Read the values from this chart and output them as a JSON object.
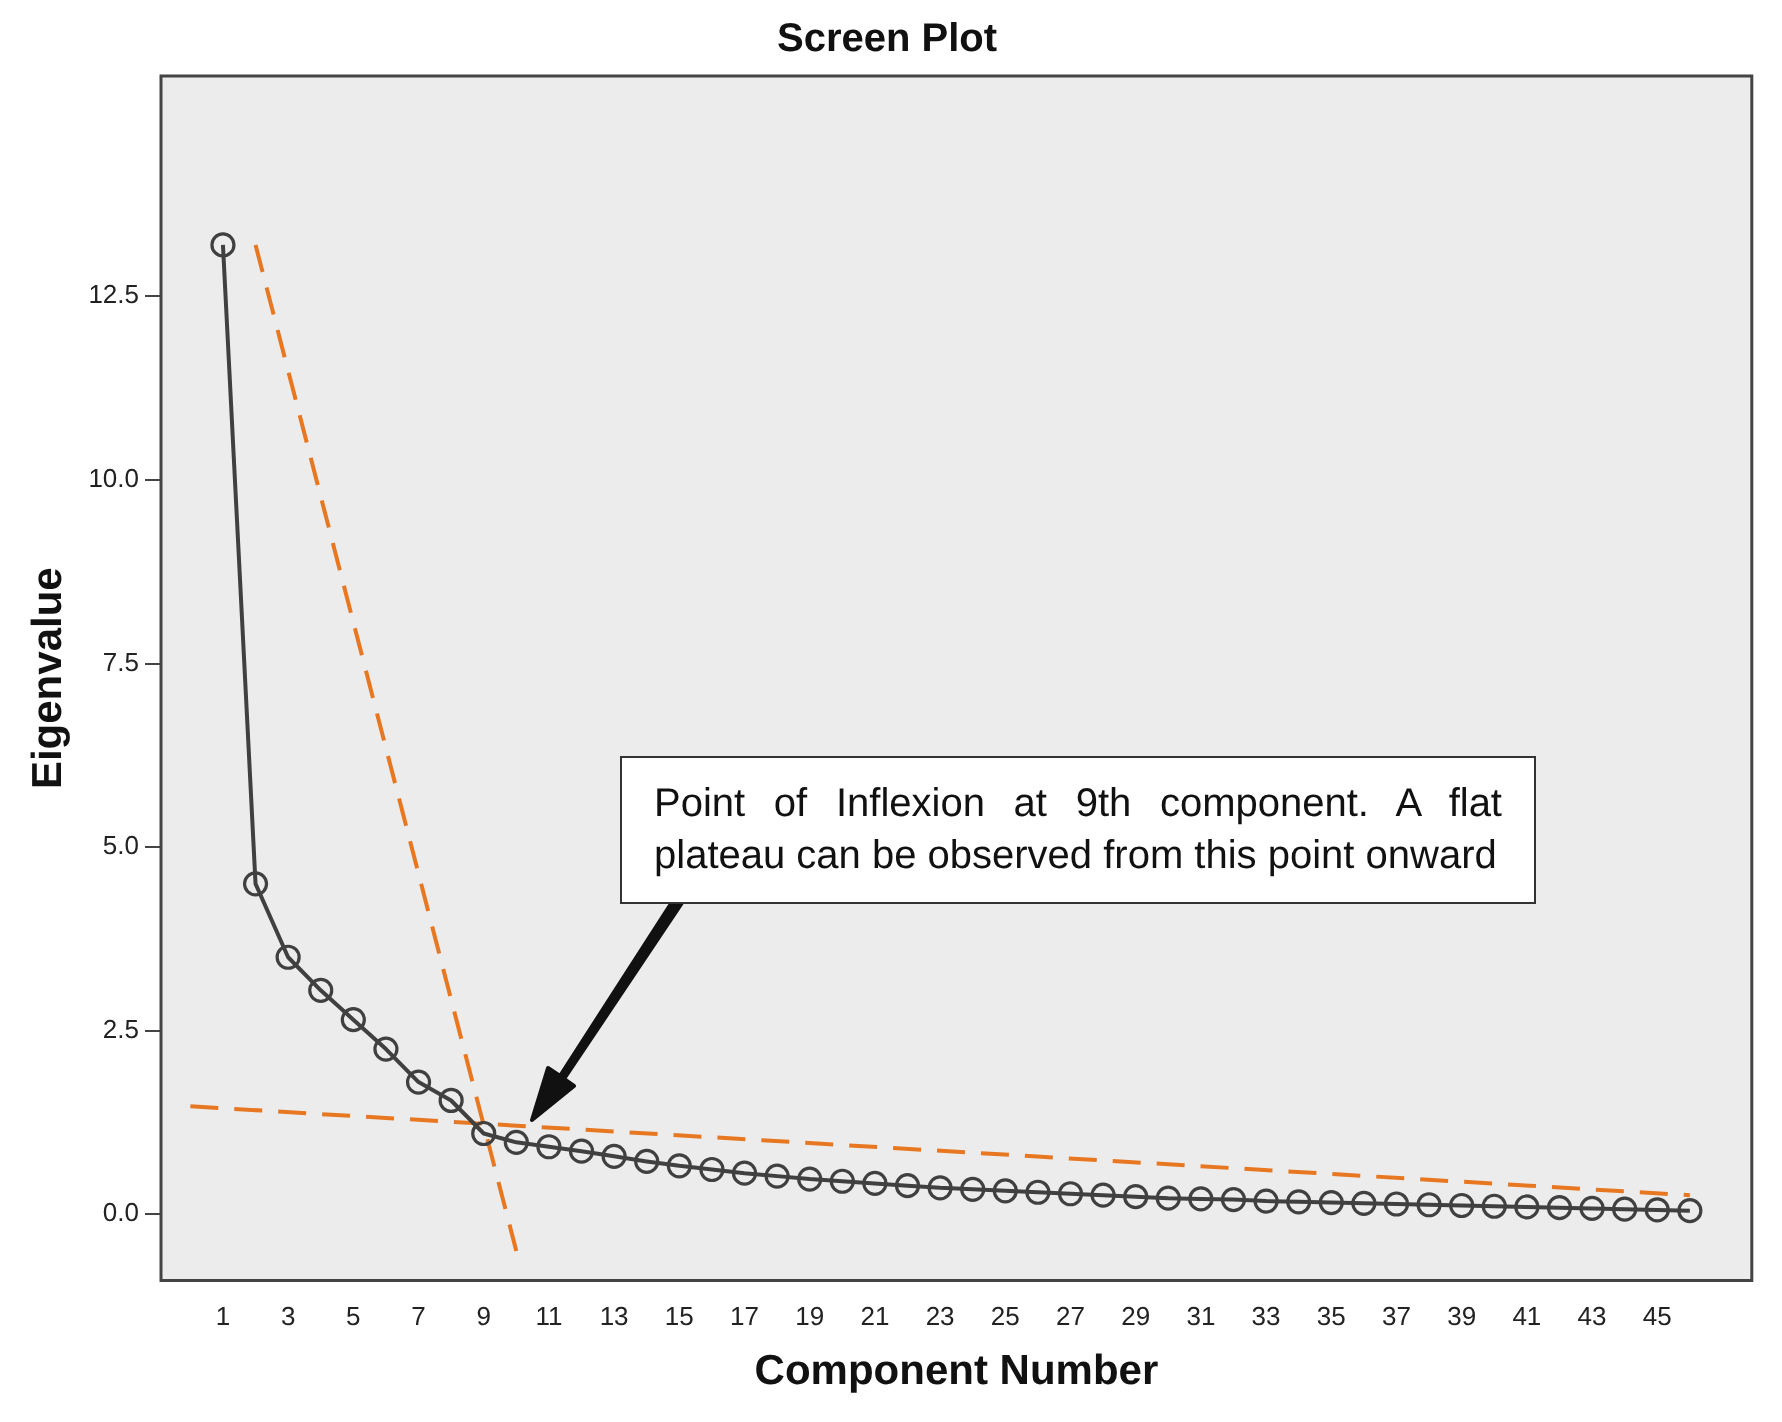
{
  "chart_data": {
    "type": "line",
    "title": "Screen Plot",
    "xlabel": "Component Number",
    "ylabel": "Eigenvalue",
    "x": [
      1,
      2,
      3,
      4,
      5,
      6,
      7,
      8,
      9,
      10,
      11,
      12,
      13,
      14,
      15,
      16,
      17,
      18,
      19,
      20,
      21,
      22,
      23,
      24,
      25,
      26,
      27,
      28,
      29,
      30,
      31,
      32,
      33,
      34,
      35,
      36,
      37,
      38,
      39,
      40,
      41,
      42,
      43,
      44,
      45,
      46
    ],
    "series": [
      {
        "color": "#404040",
        "marker": "circle",
        "line_style": "solid",
        "values": [
          13.2,
          4.5,
          3.5,
          3.05,
          2.65,
          2.25,
          1.8,
          1.55,
          1.1,
          0.98,
          0.92,
          0.86,
          0.79,
          0.72,
          0.66,
          0.61,
          0.56,
          0.52,
          0.48,
          0.45,
          0.42,
          0.39,
          0.36,
          0.34,
          0.32,
          0.3,
          0.28,
          0.26,
          0.24,
          0.22,
          0.21,
          0.2,
          0.18,
          0.17,
          0.16,
          0.15,
          0.14,
          0.13,
          0.12,
          0.11,
          0.1,
          0.09,
          0.08,
          0.07,
          0.06,
          0.05
        ]
      },
      {
        "type": "line",
        "color": "#e87722",
        "marker": "none",
        "line_style": "dashed",
        "x": [
          2,
          10
        ],
        "values": [
          13.2,
          -0.5
        ]
      },
      {
        "type": "line",
        "color": "#e87722",
        "marker": "none",
        "line_style": "dashed",
        "x": [
          0,
          46
        ],
        "values": [
          1.47,
          0.26
        ]
      }
    ],
    "xlim": [
      -0.9,
      47.9
    ],
    "xticks": [
      1,
      3,
      5,
      7,
      9,
      11,
      13,
      15,
      17,
      19,
      21,
      23,
      25,
      27,
      29,
      31,
      33,
      35,
      37,
      39,
      41,
      43,
      45
    ],
    "ylim": [
      -0.9,
      15.5
    ],
    "yticks": [
      {
        "value": 0,
        "label": "0.0"
      },
      {
        "value": 2.5,
        "label": "2.5"
      },
      {
        "value": 5,
        "label": "5.0"
      },
      {
        "value": 7.5,
        "label": "7.5"
      },
      {
        "value": 10,
        "label": "10.0"
      },
      {
        "value": 12.5,
        "label": "12.5"
      }
    ],
    "annotations": [
      "Point of Inflexion at 9th component. A flat plateau can be observed from this point onward"
    ],
    "grid": false,
    "legend": false
  }
}
